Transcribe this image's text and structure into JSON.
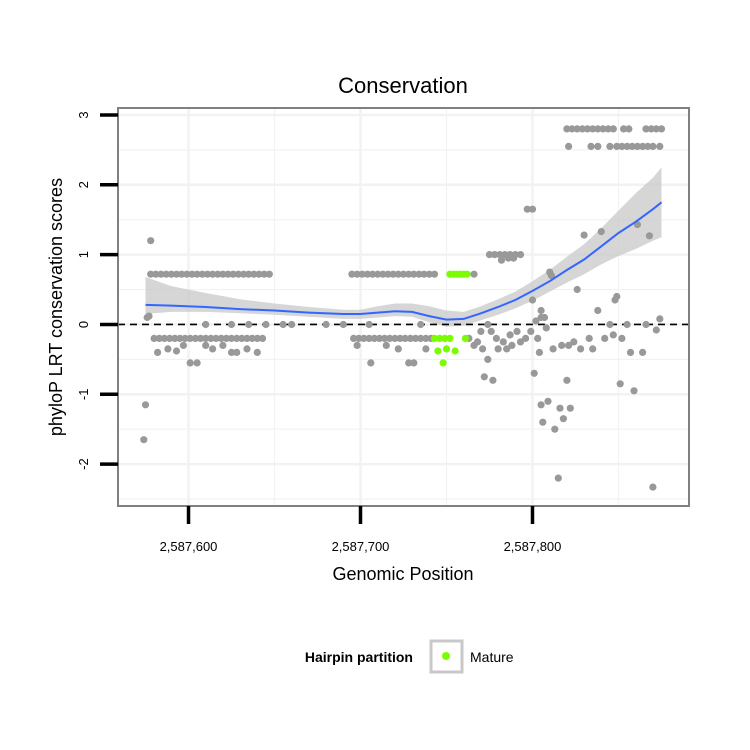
{
  "chart_data": {
    "type": "scatter",
    "title": "Conservation",
    "xlabel": "Genomic Position",
    "ylabel": "phyloP LRT conservation scores",
    "xlim": [
      2587559,
      2587891
    ],
    "ylim": [
      -2.6,
      3.1
    ],
    "x_ticks": [
      2587600,
      2587700,
      2587800
    ],
    "x_tick_labels": [
      "2,587,600",
      "2,587,700",
      "2,587,800"
    ],
    "y_ticks": [
      -2,
      -1,
      0,
      1,
      2,
      3
    ],
    "y_tick_labels": [
      "-2",
      "-1",
      "0",
      "1",
      "2",
      "3"
    ],
    "reference_line_y": 0,
    "colors": {
      "other": "#999999",
      "mature": "#7cfc00",
      "smooth": "#3366ff",
      "band": "#c8c8c8",
      "panel_border": "#808080",
      "grid": "#f2f2f2"
    },
    "legend": {
      "title": "Hairpin partition",
      "entries": [
        {
          "label": "Mature",
          "color": "#7cfc00"
        }
      ],
      "position": "bottom"
    },
    "smooth": {
      "x": [
        2587575,
        2587590,
        2587610,
        2587630,
        2587650,
        2587670,
        2587690,
        2587700,
        2587710,
        2587720,
        2587730,
        2587740,
        2587750,
        2587760,
        2587770,
        2587780,
        2587790,
        2587800,
        2587810,
        2587820,
        2587830,
        2587840,
        2587850,
        2587860,
        2587870,
        2587875
      ],
      "y": [
        0.28,
        0.27,
        0.25,
        0.22,
        0.2,
        0.17,
        0.15,
        0.15,
        0.17,
        0.19,
        0.18,
        0.12,
        0.07,
        0.08,
        0.16,
        0.25,
        0.35,
        0.48,
        0.62,
        0.78,
        0.93,
        1.12,
        1.31,
        1.47,
        1.65,
        1.75
      ],
      "lower": [
        0.15,
        0.18,
        0.18,
        0.16,
        0.14,
        0.11,
        0.08,
        0.08,
        0.1,
        0.12,
        0.11,
        0.03,
        -0.03,
        -0.02,
        0.06,
        0.14,
        0.23,
        0.34,
        0.47,
        0.6,
        0.72,
        0.86,
        0.98,
        1.08,
        1.2,
        1.25
      ],
      "upper": [
        0.68,
        0.55,
        0.45,
        0.36,
        0.3,
        0.25,
        0.21,
        0.21,
        0.26,
        0.3,
        0.3,
        0.26,
        0.2,
        0.18,
        0.26,
        0.36,
        0.47,
        0.62,
        0.78,
        0.97,
        1.15,
        1.38,
        1.63,
        1.88,
        2.1,
        2.25
      ]
    },
    "series": [
      {
        "name": "Other",
        "color": "#999999",
        "points": [
          [
            2587574,
            -1.65
          ],
          [
            2587575,
            -1.15
          ],
          [
            2587576,
            0.1
          ],
          [
            2587577,
            0.12
          ],
          [
            2587578,
            1.2
          ],
          [
            2587578,
            0.72
          ],
          [
            2587581,
            0.72
          ],
          [
            2587584,
            0.72
          ],
          [
            2587587,
            0.72
          ],
          [
            2587590,
            0.72
          ],
          [
            2587593,
            0.72
          ],
          [
            2587596,
            0.72
          ],
          [
            2587599,
            0.72
          ],
          [
            2587602,
            0.72
          ],
          [
            2587605,
            0.72
          ],
          [
            2587608,
            0.72
          ],
          [
            2587611,
            0.72
          ],
          [
            2587614,
            0.72
          ],
          [
            2587617,
            0.72
          ],
          [
            2587620,
            0.72
          ],
          [
            2587623,
            0.72
          ],
          [
            2587626,
            0.72
          ],
          [
            2587629,
            0.72
          ],
          [
            2587632,
            0.72
          ],
          [
            2587635,
            0.72
          ],
          [
            2587638,
            0.72
          ],
          [
            2587641,
            0.72
          ],
          [
            2587644,
            0.72
          ],
          [
            2587647,
            0.72
          ],
          [
            2587580,
            -0.2
          ],
          [
            2587583,
            -0.2
          ],
          [
            2587586,
            -0.2
          ],
          [
            2587589,
            -0.2
          ],
          [
            2587592,
            -0.2
          ],
          [
            2587595,
            -0.2
          ],
          [
            2587598,
            -0.2
          ],
          [
            2587601,
            -0.2
          ],
          [
            2587604,
            -0.2
          ],
          [
            2587607,
            -0.2
          ],
          [
            2587610,
            -0.2
          ],
          [
            2587613,
            -0.2
          ],
          [
            2587616,
            -0.2
          ],
          [
            2587619,
            -0.2
          ],
          [
            2587622,
            -0.2
          ],
          [
            2587625,
            -0.2
          ],
          [
            2587628,
            -0.2
          ],
          [
            2587631,
            -0.2
          ],
          [
            2587634,
            -0.2
          ],
          [
            2587637,
            -0.2
          ],
          [
            2587640,
            -0.2
          ],
          [
            2587643,
            -0.2
          ],
          [
            2587582,
            -0.4
          ],
          [
            2587588,
            -0.35
          ],
          [
            2587593,
            -0.38
          ],
          [
            2587597,
            -0.3
          ],
          [
            2587601,
            -0.55
          ],
          [
            2587605,
            -0.55
          ],
          [
            2587610,
            -0.3
          ],
          [
            2587614,
            -0.35
          ],
          [
            2587620,
            -0.3
          ],
          [
            2587625,
            -0.4
          ],
          [
            2587628,
            -0.4
          ],
          [
            2587634,
            -0.35
          ],
          [
            2587640,
            -0.4
          ],
          [
            2587610,
            0
          ],
          [
            2587625,
            0
          ],
          [
            2587635,
            0
          ],
          [
            2587645,
            0
          ],
          [
            2587655,
            0
          ],
          [
            2587660,
            0
          ],
          [
            2587680,
            0
          ],
          [
            2587690,
            0
          ],
          [
            2587705,
            0
          ],
          [
            2587735,
            0
          ],
          [
            2587695,
            0.72
          ],
          [
            2587698,
            0.72
          ],
          [
            2587701,
            0.72
          ],
          [
            2587704,
            0.72
          ],
          [
            2587707,
            0.72
          ],
          [
            2587710,
            0.72
          ],
          [
            2587713,
            0.72
          ],
          [
            2587716,
            0.72
          ],
          [
            2587719,
            0.72
          ],
          [
            2587722,
            0.72
          ],
          [
            2587725,
            0.72
          ],
          [
            2587728,
            0.72
          ],
          [
            2587731,
            0.72
          ],
          [
            2587734,
            0.72
          ],
          [
            2587737,
            0.72
          ],
          [
            2587740,
            0.72
          ],
          [
            2587743,
            0.72
          ],
          [
            2587766,
            0.72
          ],
          [
            2587696,
            -0.2
          ],
          [
            2587699,
            -0.2
          ],
          [
            2587702,
            -0.2
          ],
          [
            2587705,
            -0.2
          ],
          [
            2587708,
            -0.2
          ],
          [
            2587711,
            -0.2
          ],
          [
            2587714,
            -0.2
          ],
          [
            2587717,
            -0.2
          ],
          [
            2587720,
            -0.2
          ],
          [
            2587723,
            -0.2
          ],
          [
            2587726,
            -0.2
          ],
          [
            2587729,
            -0.2
          ],
          [
            2587732,
            -0.2
          ],
          [
            2587735,
            -0.2
          ],
          [
            2587738,
            -0.2
          ],
          [
            2587741,
            -0.2
          ],
          [
            2587698,
            -0.3
          ],
          [
            2587706,
            -0.55
          ],
          [
            2587715,
            -0.3
          ],
          [
            2587722,
            -0.35
          ],
          [
            2587728,
            -0.55
          ],
          [
            2587731,
            -0.55
          ],
          [
            2587738,
            -0.35
          ],
          [
            2587763,
            -0.2
          ],
          [
            2587766,
            -0.3
          ],
          [
            2587768,
            -0.25
          ],
          [
            2587770,
            -0.1
          ],
          [
            2587771,
            -0.35
          ],
          [
            2587772,
            -0.75
          ],
          [
            2587774,
            -0.5
          ],
          [
            2587776,
            -0.1
          ],
          [
            2587777,
            -0.8
          ],
          [
            2587779,
            -0.2
          ],
          [
            2587780,
            -0.35
          ],
          [
            2587783,
            -0.25
          ],
          [
            2587785,
            -0.35
          ],
          [
            2587787,
            -0.15
          ],
          [
            2587788,
            -0.3
          ],
          [
            2587791,
            -0.1
          ],
          [
            2587793,
            -0.25
          ],
          [
            2587796,
            -0.2
          ],
          [
            2587799,
            -0.1
          ],
          [
            2587774,
            0
          ],
          [
            2587775,
            1.0
          ],
          [
            2587778,
            1.0
          ],
          [
            2587781,
            1.0
          ],
          [
            2587784,
            1.0
          ],
          [
            2587787,
            1.0
          ],
          [
            2587790,
            1.0
          ],
          [
            2587793,
            1.0
          ],
          [
            2587786,
            0.95
          ],
          [
            2587789,
            0.95
          ],
          [
            2587782,
            0.92
          ],
          [
            2587797,
            1.65
          ],
          [
            2587800,
            1.65
          ],
          [
            2587800,
            0.35
          ],
          [
            2587802,
            0.05
          ],
          [
            2587803,
            -0.2
          ],
          [
            2587804,
            -0.4
          ],
          [
            2587805,
            0.1
          ],
          [
            2587805,
            -1.15
          ],
          [
            2587806,
            -1.4
          ],
          [
            2587807,
            0.1
          ],
          [
            2587808,
            -0.05
          ],
          [
            2587809,
            -1.1
          ],
          [
            2587810,
            0.75
          ],
          [
            2587811,
            0.7
          ],
          [
            2587812,
            -0.35
          ],
          [
            2587813,
            -1.5
          ],
          [
            2587815,
            -2.2
          ],
          [
            2587816,
            -1.2
          ],
          [
            2587817,
            -0.3
          ],
          [
            2587818,
            -1.35
          ],
          [
            2587820,
            -0.8
          ],
          [
            2587821,
            -0.3
          ],
          [
            2587822,
            -1.2
          ],
          [
            2587824,
            -0.25
          ],
          [
            2587826,
            0.5
          ],
          [
            2587828,
            -0.35
          ],
          [
            2587801,
            -0.7
          ],
          [
            2587805,
            0.2
          ],
          [
            2587830,
            1.28
          ],
          [
            2587833,
            -0.2
          ],
          [
            2587835,
            -0.35
          ],
          [
            2587838,
            0.2
          ],
          [
            2587840,
            1.33
          ],
          [
            2587842,
            -0.2
          ],
          [
            2587845,
            0
          ],
          [
            2587847,
            -0.15
          ],
          [
            2587848,
            0.35
          ],
          [
            2587849,
            0.4
          ],
          [
            2587851,
            -0.85
          ],
          [
            2587852,
            -0.2
          ],
          [
            2587855,
            0
          ],
          [
            2587857,
            -0.4
          ],
          [
            2587859,
            -0.95
          ],
          [
            2587861,
            1.43
          ],
          [
            2587864,
            -0.4
          ],
          [
            2587866,
            0
          ],
          [
            2587868,
            1.27
          ],
          [
            2587870,
            -2.33
          ],
          [
            2587872,
            -0.08
          ],
          [
            2587874,
            0.08
          ],
          [
            2587820,
            2.8
          ],
          [
            2587823,
            2.8
          ],
          [
            2587826,
            2.8
          ],
          [
            2587829,
            2.8
          ],
          [
            2587832,
            2.8
          ],
          [
            2587835,
            2.8
          ],
          [
            2587838,
            2.8
          ],
          [
            2587841,
            2.8
          ],
          [
            2587844,
            2.8
          ],
          [
            2587847,
            2.8
          ],
          [
            2587853,
            2.8
          ],
          [
            2587856,
            2.8
          ],
          [
            2587866,
            2.8
          ],
          [
            2587869,
            2.8
          ],
          [
            2587872,
            2.8
          ],
          [
            2587875,
            2.8
          ],
          [
            2587821,
            2.55
          ],
          [
            2587834,
            2.55
          ],
          [
            2587838,
            2.55
          ],
          [
            2587845,
            2.55
          ],
          [
            2587849,
            2.55
          ],
          [
            2587852,
            2.55
          ],
          [
            2587855,
            2.55
          ],
          [
            2587858,
            2.55
          ],
          [
            2587861,
            2.55
          ],
          [
            2587864,
            2.55
          ],
          [
            2587867,
            2.55
          ],
          [
            2587870,
            2.55
          ],
          [
            2587874,
            2.55
          ]
        ]
      },
      {
        "name": "Mature",
        "color": "#7cfc00",
        "points": [
          [
            2587752,
            0.72
          ],
          [
            2587754,
            0.72
          ],
          [
            2587756,
            0.72
          ],
          [
            2587758,
            0.72
          ],
          [
            2587760,
            0.72
          ],
          [
            2587762,
            0.72
          ],
          [
            2587743,
            -0.2
          ],
          [
            2587746,
            -0.2
          ],
          [
            2587749,
            -0.2
          ],
          [
            2587752,
            -0.2
          ],
          [
            2587761,
            -0.2
          ],
          [
            2587745,
            -0.38
          ],
          [
            2587750,
            -0.35
          ],
          [
            2587755,
            -0.38
          ],
          [
            2587748,
            -0.55
          ]
        ]
      }
    ]
  }
}
